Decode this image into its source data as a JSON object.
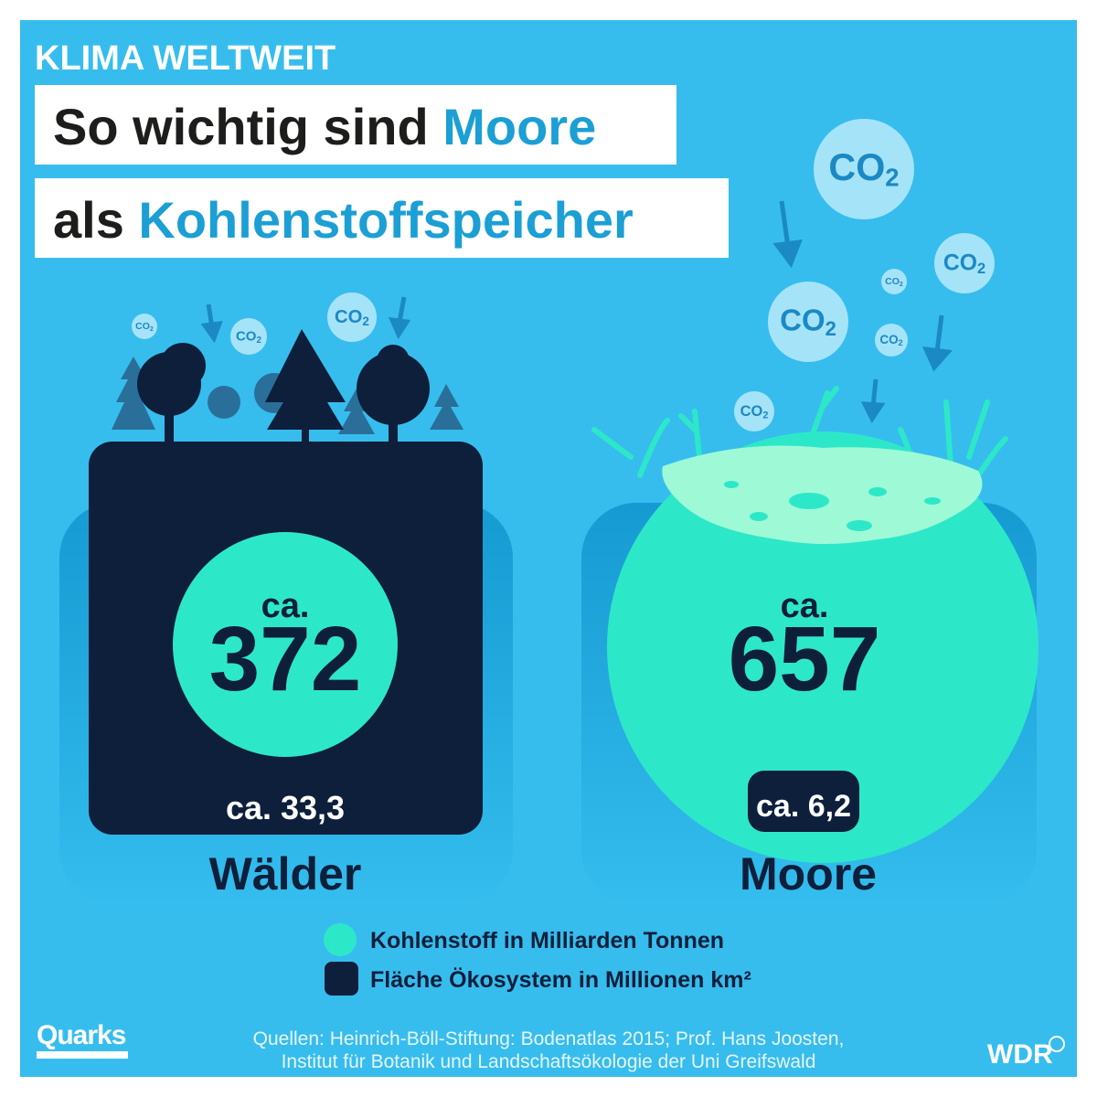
{
  "kicker": "KLIMA WELTWEIT",
  "title": {
    "line1_plain": "So wichtig sind ",
    "line1_accent": "Moore",
    "line2_plain": "als ",
    "line2_accent": "Kohlenstoffspeicher"
  },
  "co2": {
    "base": "CO",
    "sub": "2"
  },
  "ecosystems": [
    {
      "name": "Wälder",
      "carbon_prefix": "ca.",
      "carbon": "372",
      "area": "ca. 33,3"
    },
    {
      "name": "Moore",
      "carbon_prefix": "ca.",
      "carbon": "657",
      "area": "ca. 6,2"
    }
  ],
  "legend": [
    {
      "label": "Kohlenstoff in Milliarden Tonnen"
    },
    {
      "label": "Fläche Ökosystem in Millionen km²"
    }
  ],
  "logo": "Quarks",
  "source": [
    "Quellen: Heinrich-Böll-Stiftung: Bodenatlas 2015; Prof. Hans Joosten,",
    "Institut für Botanik und Landschaftsökologie der Uni Greifswald"
  ],
  "broadcaster": "WDR"
}
